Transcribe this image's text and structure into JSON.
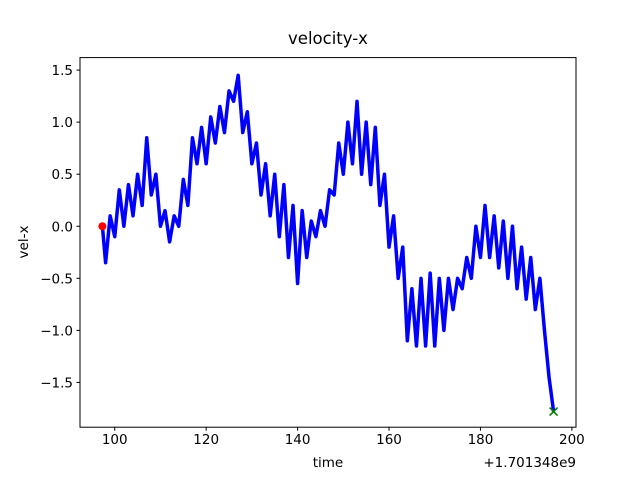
{
  "chart_data": {
    "type": "line",
    "title": "velocity-x",
    "x_label": "time",
    "y_label": "vel-x",
    "x_offset_label": "+1.701348e9",
    "xlim": [
      92.4,
      200.9
    ],
    "ylim": [
      -1.93,
      1.62
    ],
    "xticks": [
      100,
      120,
      140,
      160,
      180,
      200
    ],
    "yticks": [
      {
        "value": -1.5,
        "label": "−1.5"
      },
      {
        "value": -1,
        "label": "−1.0"
      },
      {
        "value": -0.5,
        "label": "−0.5"
      },
      {
        "value": 0,
        "label": "0.0"
      },
      0.5,
      {
        "value": 1,
        "label": "1.0"
      },
      1.5
    ],
    "series": [
      {
        "color": "#0000ff",
        "x": [
          97.3,
          98,
          99,
          100,
          101,
          102,
          103,
          104,
          105,
          106,
          107,
          108,
          109,
          110,
          111,
          112,
          113,
          114,
          115,
          116,
          117,
          118,
          119,
          120,
          121,
          122,
          123,
          124,
          125,
          126,
          127,
          128,
          129,
          130,
          131,
          132,
          133,
          134,
          135,
          136,
          137,
          138,
          139,
          140,
          141,
          142,
          143,
          144,
          145,
          146,
          147,
          148,
          149,
          150,
          151,
          152,
          153,
          154,
          155,
          156,
          157,
          158,
          159,
          160,
          161,
          162,
          163,
          164,
          165,
          166,
          167,
          168,
          169,
          170,
          171,
          172,
          173,
          174,
          175,
          176,
          177,
          178,
          179,
          180,
          181,
          182,
          183,
          184,
          185,
          186,
          187,
          188,
          189,
          190,
          191,
          192,
          193,
          194,
          195,
          196
        ],
        "values": [
          0.0,
          -0.35,
          0.1,
          -0.1,
          0.35,
          0.0,
          0.4,
          0.1,
          0.5,
          0.2,
          0.85,
          0.3,
          0.5,
          0.0,
          0.15,
          -0.15,
          0.1,
          0.0,
          0.45,
          0.2,
          0.85,
          0.6,
          0.95,
          0.6,
          1.05,
          0.8,
          1.15,
          0.9,
          1.3,
          1.2,
          1.45,
          0.9,
          1.1,
          0.6,
          0.8,
          0.3,
          0.6,
          0.1,
          0.5,
          -0.1,
          0.4,
          -0.3,
          0.2,
          -0.55,
          0.15,
          -0.3,
          0.05,
          -0.1,
          0.15,
          0.0,
          0.35,
          0.3,
          0.8,
          0.5,
          1.0,
          0.6,
          1.2,
          0.5,
          1.0,
          0.4,
          0.95,
          0.2,
          0.5,
          -0.2,
          0.1,
          -0.5,
          -0.2,
          -1.1,
          -0.6,
          -1.15,
          -0.5,
          -1.15,
          -0.45,
          -1.15,
          -0.5,
          -1.0,
          -0.5,
          -0.8,
          -0.5,
          -0.6,
          -0.3,
          -0.5,
          0.0,
          -0.3,
          0.2,
          -0.3,
          0.1,
          -0.4,
          0.05,
          -0.5,
          0.0,
          -0.6,
          -0.2,
          -0.7,
          -0.3,
          -0.8,
          -0.5,
          -1.0,
          -1.45,
          -1.78
        ]
      }
    ],
    "markers": [
      {
        "shape": "circle",
        "color": "#ff0000",
        "x": [
          97.3
        ],
        "values": [
          0.0
        ]
      },
      {
        "shape": "x",
        "color": "#008000",
        "x": [
          196
        ],
        "values": [
          -1.78
        ]
      }
    ]
  }
}
